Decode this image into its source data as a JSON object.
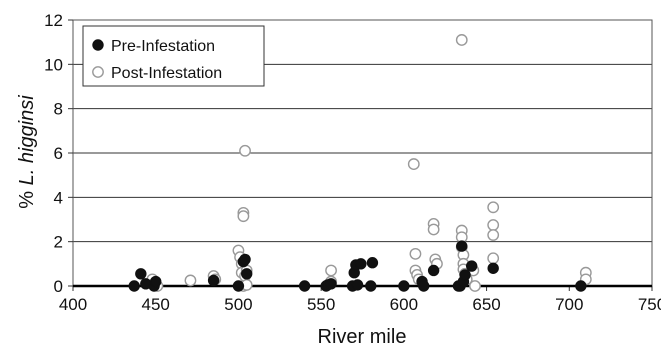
{
  "chart_data": {
    "type": "scatter",
    "xlabel": "River mile",
    "ylabel_prefix": "% ",
    "ylabel_italic": "L. higginsi",
    "xlim": [
      400,
      750
    ],
    "ylim": [
      0,
      12
    ],
    "xticks": [
      400,
      450,
      500,
      550,
      600,
      650,
      700,
      750
    ],
    "yticks": [
      0,
      2,
      4,
      6,
      8,
      10,
      12
    ],
    "grid": "horizontal",
    "legend_position": "top-left",
    "series": [
      {
        "name": "Pre-Infestation",
        "marker": "filled-circle",
        "color": "#111111",
        "points": [
          [
            437,
            0.0
          ],
          [
            441,
            0.55
          ],
          [
            444,
            0.1
          ],
          [
            449,
            0.0
          ],
          [
            450,
            0.2
          ],
          [
            485,
            0.25
          ],
          [
            500,
            0.0
          ],
          [
            503,
            1.1
          ],
          [
            504,
            1.2
          ],
          [
            505,
            0.55
          ],
          [
            540,
            0.0
          ],
          [
            553,
            0.0
          ],
          [
            554,
            0.05
          ],
          [
            556,
            0.1
          ],
          [
            569,
            0.0
          ],
          [
            570,
            0.6
          ],
          [
            571,
            0.95
          ],
          [
            572,
            0.05
          ],
          [
            574,
            1.0
          ],
          [
            580,
            0.0
          ],
          [
            581,
            1.05
          ],
          [
            600,
            0.0
          ],
          [
            611,
            0.2
          ],
          [
            612,
            0.0
          ],
          [
            618,
            0.7
          ],
          [
            633,
            0.0
          ],
          [
            634,
            0.0
          ],
          [
            635,
            1.8
          ],
          [
            636,
            0.2
          ],
          [
            637,
            0.5
          ],
          [
            641,
            0.9
          ],
          [
            654,
            0.8
          ],
          [
            707,
            0.0
          ]
        ]
      },
      {
        "name": "Post-Infestation",
        "marker": "open-circle",
        "color": "#999999",
        "points": [
          [
            448,
            0.3
          ],
          [
            449,
            0.1
          ],
          [
            451,
            0.0
          ],
          [
            471,
            0.25
          ],
          [
            485,
            0.45
          ],
          [
            486,
            0.3
          ],
          [
            500,
            1.6
          ],
          [
            501,
            1.3
          ],
          [
            502,
            1.0
          ],
          [
            502,
            0.6
          ],
          [
            503,
            0.0
          ],
          [
            504,
            6.1
          ],
          [
            503,
            3.3
          ],
          [
            503,
            3.15
          ],
          [
            504,
            0.45
          ],
          [
            505,
            0.7
          ],
          [
            505,
            0.05
          ],
          [
            556,
            0.7
          ],
          [
            556,
            0.2
          ],
          [
            606,
            5.5
          ],
          [
            607,
            1.45
          ],
          [
            607,
            0.7
          ],
          [
            608,
            0.5
          ],
          [
            609,
            0.3
          ],
          [
            618,
            2.8
          ],
          [
            618,
            2.55
          ],
          [
            619,
            1.2
          ],
          [
            620,
            1.0
          ],
          [
            635,
            11.1
          ],
          [
            635,
            2.5
          ],
          [
            635,
            2.2
          ],
          [
            635,
            1.75
          ],
          [
            636,
            1.4
          ],
          [
            636,
            1.0
          ],
          [
            636,
            0.75
          ],
          [
            637,
            0.55
          ],
          [
            638,
            0.3
          ],
          [
            642,
            0.7
          ],
          [
            643,
            0.0
          ],
          [
            654,
            3.55
          ],
          [
            654,
            2.75
          ],
          [
            654,
            2.3
          ],
          [
            654,
            1.25
          ],
          [
            710,
            0.6
          ],
          [
            710,
            0.3
          ]
        ]
      }
    ]
  }
}
